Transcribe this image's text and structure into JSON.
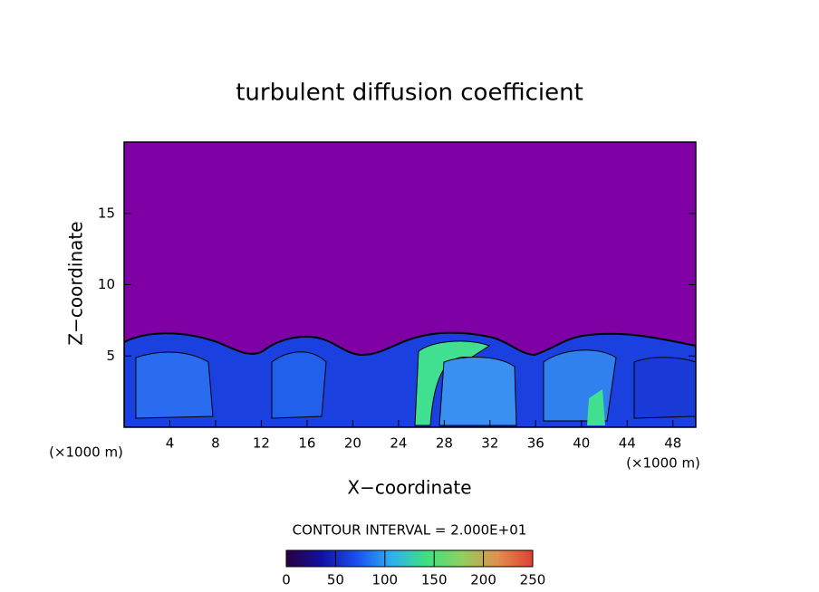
{
  "chart_data": {
    "type": "contour",
    "title": "turbulent diffusion coefficient",
    "x_label": "X−coordinate",
    "y_label": "Z−coordinate",
    "unit_labels": [
      "(×1000 m)",
      "(×1000 m)"
    ],
    "contour_interval_label": "CONTOUR INTERVAL = 2.000E+01",
    "xlim": [
      0,
      50
    ],
    "xticks": [
      4,
      8,
      12,
      16,
      20,
      24,
      28,
      32,
      36,
      40,
      44,
      48
    ],
    "ylim": [
      0,
      20
    ],
    "yticks": [
      5,
      10,
      15
    ],
    "colorbar": {
      "lim": [
        0,
        250
      ],
      "ticks": [
        0,
        50,
        100,
        150,
        200,
        250
      ],
      "colors": [
        "#2a0040",
        "#1010a0",
        "#1a50f0",
        "#30b0f0",
        "#40e080",
        "#90d060",
        "#e09050",
        "#e04030"
      ]
    }
  }
}
